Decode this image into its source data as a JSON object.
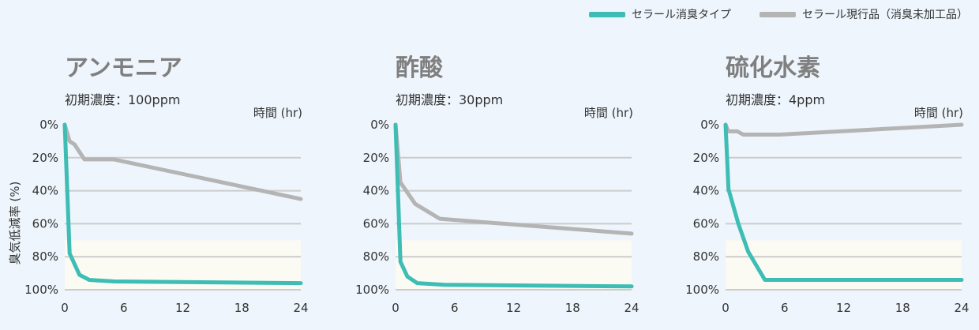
{
  "legend": {
    "series1": "セラール消臭タイプ",
    "series2": "セラール現行品（消臭未加工品）"
  },
  "colors": {
    "series1": "#3dbdb4",
    "series2": "#b4b4b4",
    "grid": "#cccccc",
    "highlight": "#fbfaf3",
    "plot_bg": "#eef5fc"
  },
  "chart_data": [
    {
      "type": "line",
      "title": "アンモニア",
      "subtitle": "初期濃度：100ppm",
      "xlabel": "時間 (hr)",
      "ylabel": "臭気低減率 (%)",
      "x_ticks": [
        0,
        6,
        12,
        18,
        24
      ],
      "y_ticks": [
        "0%",
        "20%",
        "40%",
        "60%",
        "80%",
        "100%"
      ],
      "xlim": [
        0,
        24
      ],
      "ylim": [
        0,
        100
      ],
      "y_inverted": true,
      "highlight_band": [
        70,
        100
      ],
      "series": [
        {
          "key": "series1",
          "x": [
            0,
            0.5,
            1.5,
            2.5,
            5,
            24
          ],
          "y": [
            0,
            78,
            91,
            94,
            95,
            96
          ]
        },
        {
          "key": "series2",
          "x": [
            0,
            0.5,
            1,
            2,
            5,
            24
          ],
          "y": [
            0,
            10,
            12,
            21,
            21,
            45
          ]
        }
      ]
    },
    {
      "type": "line",
      "title": "酢酸",
      "subtitle": "初期濃度：30ppm",
      "xlabel": "時間 (hr)",
      "ylabel": "",
      "x_ticks": [
        0,
        6,
        12,
        18,
        24
      ],
      "y_ticks": [
        "0%",
        "20%",
        "40%",
        "60%",
        "80%",
        "100%"
      ],
      "xlim": [
        0,
        24
      ],
      "ylim": [
        0,
        100
      ],
      "y_inverted": true,
      "highlight_band": [
        70,
        100
      ],
      "series": [
        {
          "key": "series1",
          "x": [
            0,
            0.5,
            1.2,
            2.2,
            5,
            24
          ],
          "y": [
            0,
            83,
            92,
            96,
            97,
            98
          ]
        },
        {
          "key": "series2",
          "x": [
            0,
            0.5,
            2,
            4.5,
            24
          ],
          "y": [
            0,
            35,
            48,
            57,
            66
          ]
        }
      ]
    },
    {
      "type": "line",
      "title": "硫化水素",
      "subtitle": "初期濃度：4ppm",
      "xlabel": "時間 (hr)",
      "ylabel": "",
      "x_ticks": [
        0,
        6,
        12,
        18,
        24
      ],
      "y_ticks": [
        "0%",
        "20%",
        "40%",
        "60%",
        "80%",
        "100%"
      ],
      "xlim": [
        0,
        24
      ],
      "ylim": [
        0,
        100
      ],
      "y_inverted": true,
      "highlight_band": [
        70,
        100
      ],
      "series": [
        {
          "key": "series1",
          "x": [
            0,
            0.3,
            1.3,
            2.3,
            4,
            24
          ],
          "y": [
            0,
            39,
            60,
            77,
            94,
            94
          ]
        },
        {
          "key": "series2",
          "x": [
            0,
            0.3,
            1.2,
            1.8,
            5.5,
            24
          ],
          "y": [
            0,
            4,
            4,
            6,
            6,
            0
          ]
        }
      ]
    }
  ]
}
